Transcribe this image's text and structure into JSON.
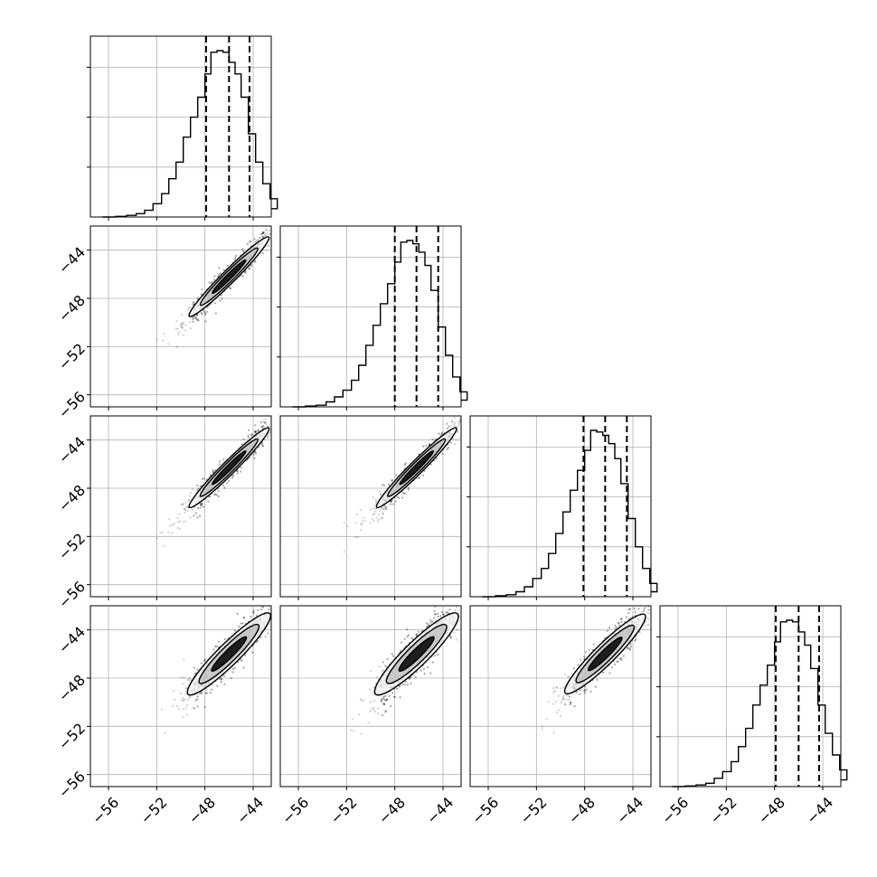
{
  "chart_data": {
    "type": "corner",
    "ndim": 4,
    "ticks": [
      -56,
      -52,
      -48,
      -44
    ],
    "tick_labels": [
      "−56",
      "−52",
      "−48",
      "−44"
    ],
    "x_range": [
      -57.5,
      -42.5
    ],
    "y_range": [
      -57.0,
      -42.0
    ],
    "hist_line_color": "#000000",
    "scatter_color": "#333333",
    "contour_fills": [
      "#f2f2f2",
      "#bdbdbd",
      "#000000"
    ],
    "diagonals": [
      {
        "quantiles": [
          -47.9,
          -46.0,
          -44.3
        ],
        "hist": [
          [
            -56.5,
            0.0
          ],
          [
            -55.4,
            0.004
          ],
          [
            -54.5,
            0.01
          ],
          [
            -53.7,
            0.02
          ],
          [
            -53.0,
            0.04
          ],
          [
            -52.3,
            0.08
          ],
          [
            -51.6,
            0.14
          ],
          [
            -51.0,
            0.23
          ],
          [
            -50.4,
            0.33
          ],
          [
            -49.8,
            0.48
          ],
          [
            -49.2,
            0.6
          ],
          [
            -48.6,
            0.72
          ],
          [
            -48.0,
            0.86
          ],
          [
            -47.5,
            0.99
          ],
          [
            -47.0,
            1.0
          ],
          [
            -46.5,
            0.99
          ],
          [
            -46.0,
            0.93
          ],
          [
            -45.5,
            0.86
          ],
          [
            -45.0,
            0.72
          ],
          [
            -44.4,
            0.5
          ],
          [
            -43.8,
            0.33
          ],
          [
            -43.2,
            0.2
          ],
          [
            -42.6,
            0.11
          ],
          [
            -42.0,
            0.05
          ]
        ]
      },
      {
        "quantiles": [
          -48.0,
          -46.2,
          -44.4
        ],
        "hist": [
          [
            -56.5,
            0.0
          ],
          [
            -55.4,
            0.005
          ],
          [
            -54.5,
            0.01
          ],
          [
            -53.7,
            0.03
          ],
          [
            -53.0,
            0.06
          ],
          [
            -52.3,
            0.1
          ],
          [
            -51.6,
            0.16
          ],
          [
            -51.0,
            0.25
          ],
          [
            -50.4,
            0.37
          ],
          [
            -49.8,
            0.49
          ],
          [
            -49.2,
            0.62
          ],
          [
            -48.6,
            0.74
          ],
          [
            -48.0,
            0.87
          ],
          [
            -47.5,
            0.99
          ],
          [
            -47.0,
            1.0
          ],
          [
            -46.5,
            0.98
          ],
          [
            -46.0,
            0.93
          ],
          [
            -45.5,
            0.85
          ],
          [
            -45.0,
            0.7
          ],
          [
            -44.4,
            0.48
          ],
          [
            -43.8,
            0.31
          ],
          [
            -43.2,
            0.18
          ],
          [
            -42.6,
            0.09
          ],
          [
            -42.0,
            0.04
          ]
        ]
      },
      {
        "quantiles": [
          -48.1,
          -46.3,
          -44.5
        ],
        "hist": [
          [
            -56.5,
            0.0
          ],
          [
            -55.4,
            0.006
          ],
          [
            -54.5,
            0.012
          ],
          [
            -53.7,
            0.03
          ],
          [
            -53.0,
            0.06
          ],
          [
            -52.3,
            0.11
          ],
          [
            -51.6,
            0.17
          ],
          [
            -51.0,
            0.26
          ],
          [
            -50.4,
            0.38
          ],
          [
            -49.8,
            0.51
          ],
          [
            -49.2,
            0.64
          ],
          [
            -48.6,
            0.76
          ],
          [
            -48.0,
            0.88
          ],
          [
            -47.5,
            1.0
          ],
          [
            -47.0,
            0.99
          ],
          [
            -46.5,
            0.97
          ],
          [
            -46.0,
            0.92
          ],
          [
            -45.5,
            0.83
          ],
          [
            -45.0,
            0.68
          ],
          [
            -44.4,
            0.47
          ],
          [
            -43.8,
            0.3
          ],
          [
            -43.2,
            0.17
          ],
          [
            -42.6,
            0.08
          ],
          [
            -42.0,
            0.03
          ]
        ]
      },
      {
        "quantiles": [
          -47.9,
          -46.0,
          -44.3
        ],
        "hist": [
          [
            -56.5,
            0.0
          ],
          [
            -55.4,
            0.004
          ],
          [
            -54.5,
            0.01
          ],
          [
            -53.7,
            0.02
          ],
          [
            -53.0,
            0.05
          ],
          [
            -52.3,
            0.09
          ],
          [
            -51.6,
            0.15
          ],
          [
            -51.0,
            0.24
          ],
          [
            -50.4,
            0.35
          ],
          [
            -49.8,
            0.49
          ],
          [
            -49.2,
            0.61
          ],
          [
            -48.6,
            0.73
          ],
          [
            -48.0,
            0.87
          ],
          [
            -47.5,
            0.99
          ],
          [
            -47.0,
            1.0
          ],
          [
            -46.5,
            0.99
          ],
          [
            -46.0,
            0.93
          ],
          [
            -45.5,
            0.85
          ],
          [
            -45.0,
            0.71
          ],
          [
            -44.4,
            0.49
          ],
          [
            -43.8,
            0.32
          ],
          [
            -43.2,
            0.19
          ],
          [
            -42.6,
            0.1
          ],
          [
            -42.0,
            0.04
          ]
        ]
      }
    ],
    "pairs": [
      {
        "row": 1,
        "col": 0,
        "corr": 0.995,
        "spread": 0.45,
        "ellipse_center": [
          -46.0,
          -46.2
        ],
        "ellipse_halflen": 3.3,
        "ellipse_halfwidth": 0.55
      },
      {
        "row": 2,
        "col": 0,
        "corr": 0.995,
        "spread": 0.45,
        "ellipse_center": [
          -46.0,
          -46.3
        ],
        "ellipse_halflen": 3.3,
        "ellipse_halfwidth": 0.55
      },
      {
        "row": 2,
        "col": 1,
        "corr": 0.995,
        "spread": 0.45,
        "ellipse_center": [
          -46.2,
          -46.3
        ],
        "ellipse_halflen": 3.3,
        "ellipse_halfwidth": 0.55
      },
      {
        "row": 3,
        "col": 0,
        "corr": 0.985,
        "spread": 0.7,
        "ellipse_center": [
          -46.0,
          -46.0
        ],
        "ellipse_halflen": 3.4,
        "ellipse_halfwidth": 0.9
      },
      {
        "row": 3,
        "col": 1,
        "corr": 0.98,
        "spread": 0.8,
        "ellipse_center": [
          -46.2,
          -46.0
        ],
        "ellipse_halflen": 3.4,
        "ellipse_halfwidth": 1.0
      },
      {
        "row": 3,
        "col": 2,
        "corr": 0.985,
        "spread": 0.65,
        "ellipse_center": [
          -46.3,
          -46.0
        ],
        "ellipse_halflen": 3.3,
        "ellipse_halfwidth": 0.85
      }
    ]
  }
}
